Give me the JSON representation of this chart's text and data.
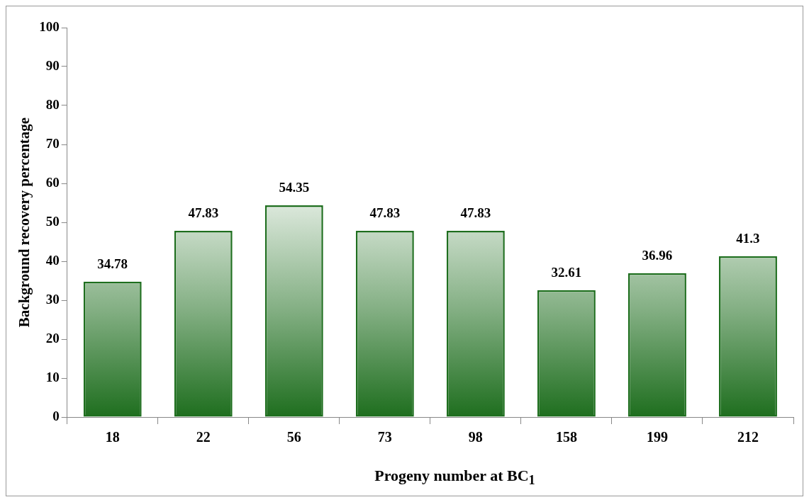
{
  "chart_data": {
    "type": "bar",
    "xlabel": "Progeny number at BC$_{1}$",
    "ylabel": "Background recovery percentage",
    "categories": [
      "18",
      "22",
      "56",
      "73",
      "98",
      "158",
      "199",
      "212"
    ],
    "values": [
      34.78,
      47.83,
      54.35,
      47.83,
      47.83,
      32.61,
      36.96,
      41.3
    ],
    "color": "#1e6e1e",
    "ylim": [
      0,
      100
    ],
    "yticks": [
      0,
      10,
      20,
      30,
      40,
      50,
      60,
      70,
      80,
      90,
      100
    ],
    "grid": false,
    "legend": false,
    "data_labels": true
  }
}
